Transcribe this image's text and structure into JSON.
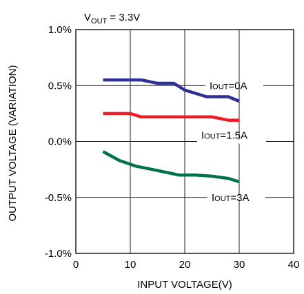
{
  "chart_data": {
    "type": "line",
    "title_main": "V",
    "title_sub": "OUT",
    "title_rest": " = 3.3V",
    "xlabel": "INPUT VOLTAGE(V)",
    "ylabel": "OUTPUT VOLTAGE (VARIATION)",
    "xlim": [
      0,
      40
    ],
    "ylim": [
      -1.0,
      1.0
    ],
    "x_ticks": [
      0,
      10,
      20,
      30,
      40
    ],
    "x_tick_labels": [
      "0",
      "10",
      "20",
      "30",
      "40"
    ],
    "y_ticks": [
      1.0,
      0.5,
      0.0,
      -0.5,
      -1.0
    ],
    "y_tick_labels": [
      "1.0%",
      "0.5%",
      "0.0%",
      "-0.5%",
      "-1.0%"
    ],
    "grid": true,
    "series": [
      {
        "name_main": "I",
        "name_sub": "OUT",
        "name_rest": "=0A",
        "color": "#2e3192",
        "x": [
          5,
          8,
          12,
          15,
          18,
          20,
          22,
          24,
          26,
          28,
          30
        ],
        "y": [
          0.55,
          0.55,
          0.55,
          0.52,
          0.52,
          0.46,
          0.43,
          0.4,
          0.4,
          0.4,
          0.36
        ]
      },
      {
        "name_main": "I",
        "name_sub": "OUT",
        "name_rest": "=1.5A",
        "color": "#ed1c24",
        "x": [
          5,
          10,
          12,
          15,
          20,
          25,
          28,
          30
        ],
        "y": [
          0.25,
          0.25,
          0.22,
          0.22,
          0.22,
          0.22,
          0.19,
          0.19
        ]
      },
      {
        "name_main": "I",
        "name_sub": "OUT",
        "name_rest": "=3A",
        "color": "#00734a",
        "x": [
          5,
          8,
          11,
          14,
          17,
          19,
          22,
          25,
          28,
          30
        ],
        "y": [
          -0.09,
          -0.17,
          -0.22,
          -0.25,
          -0.28,
          -0.3,
          -0.3,
          -0.31,
          -0.33,
          -0.36
        ]
      }
    ]
  }
}
